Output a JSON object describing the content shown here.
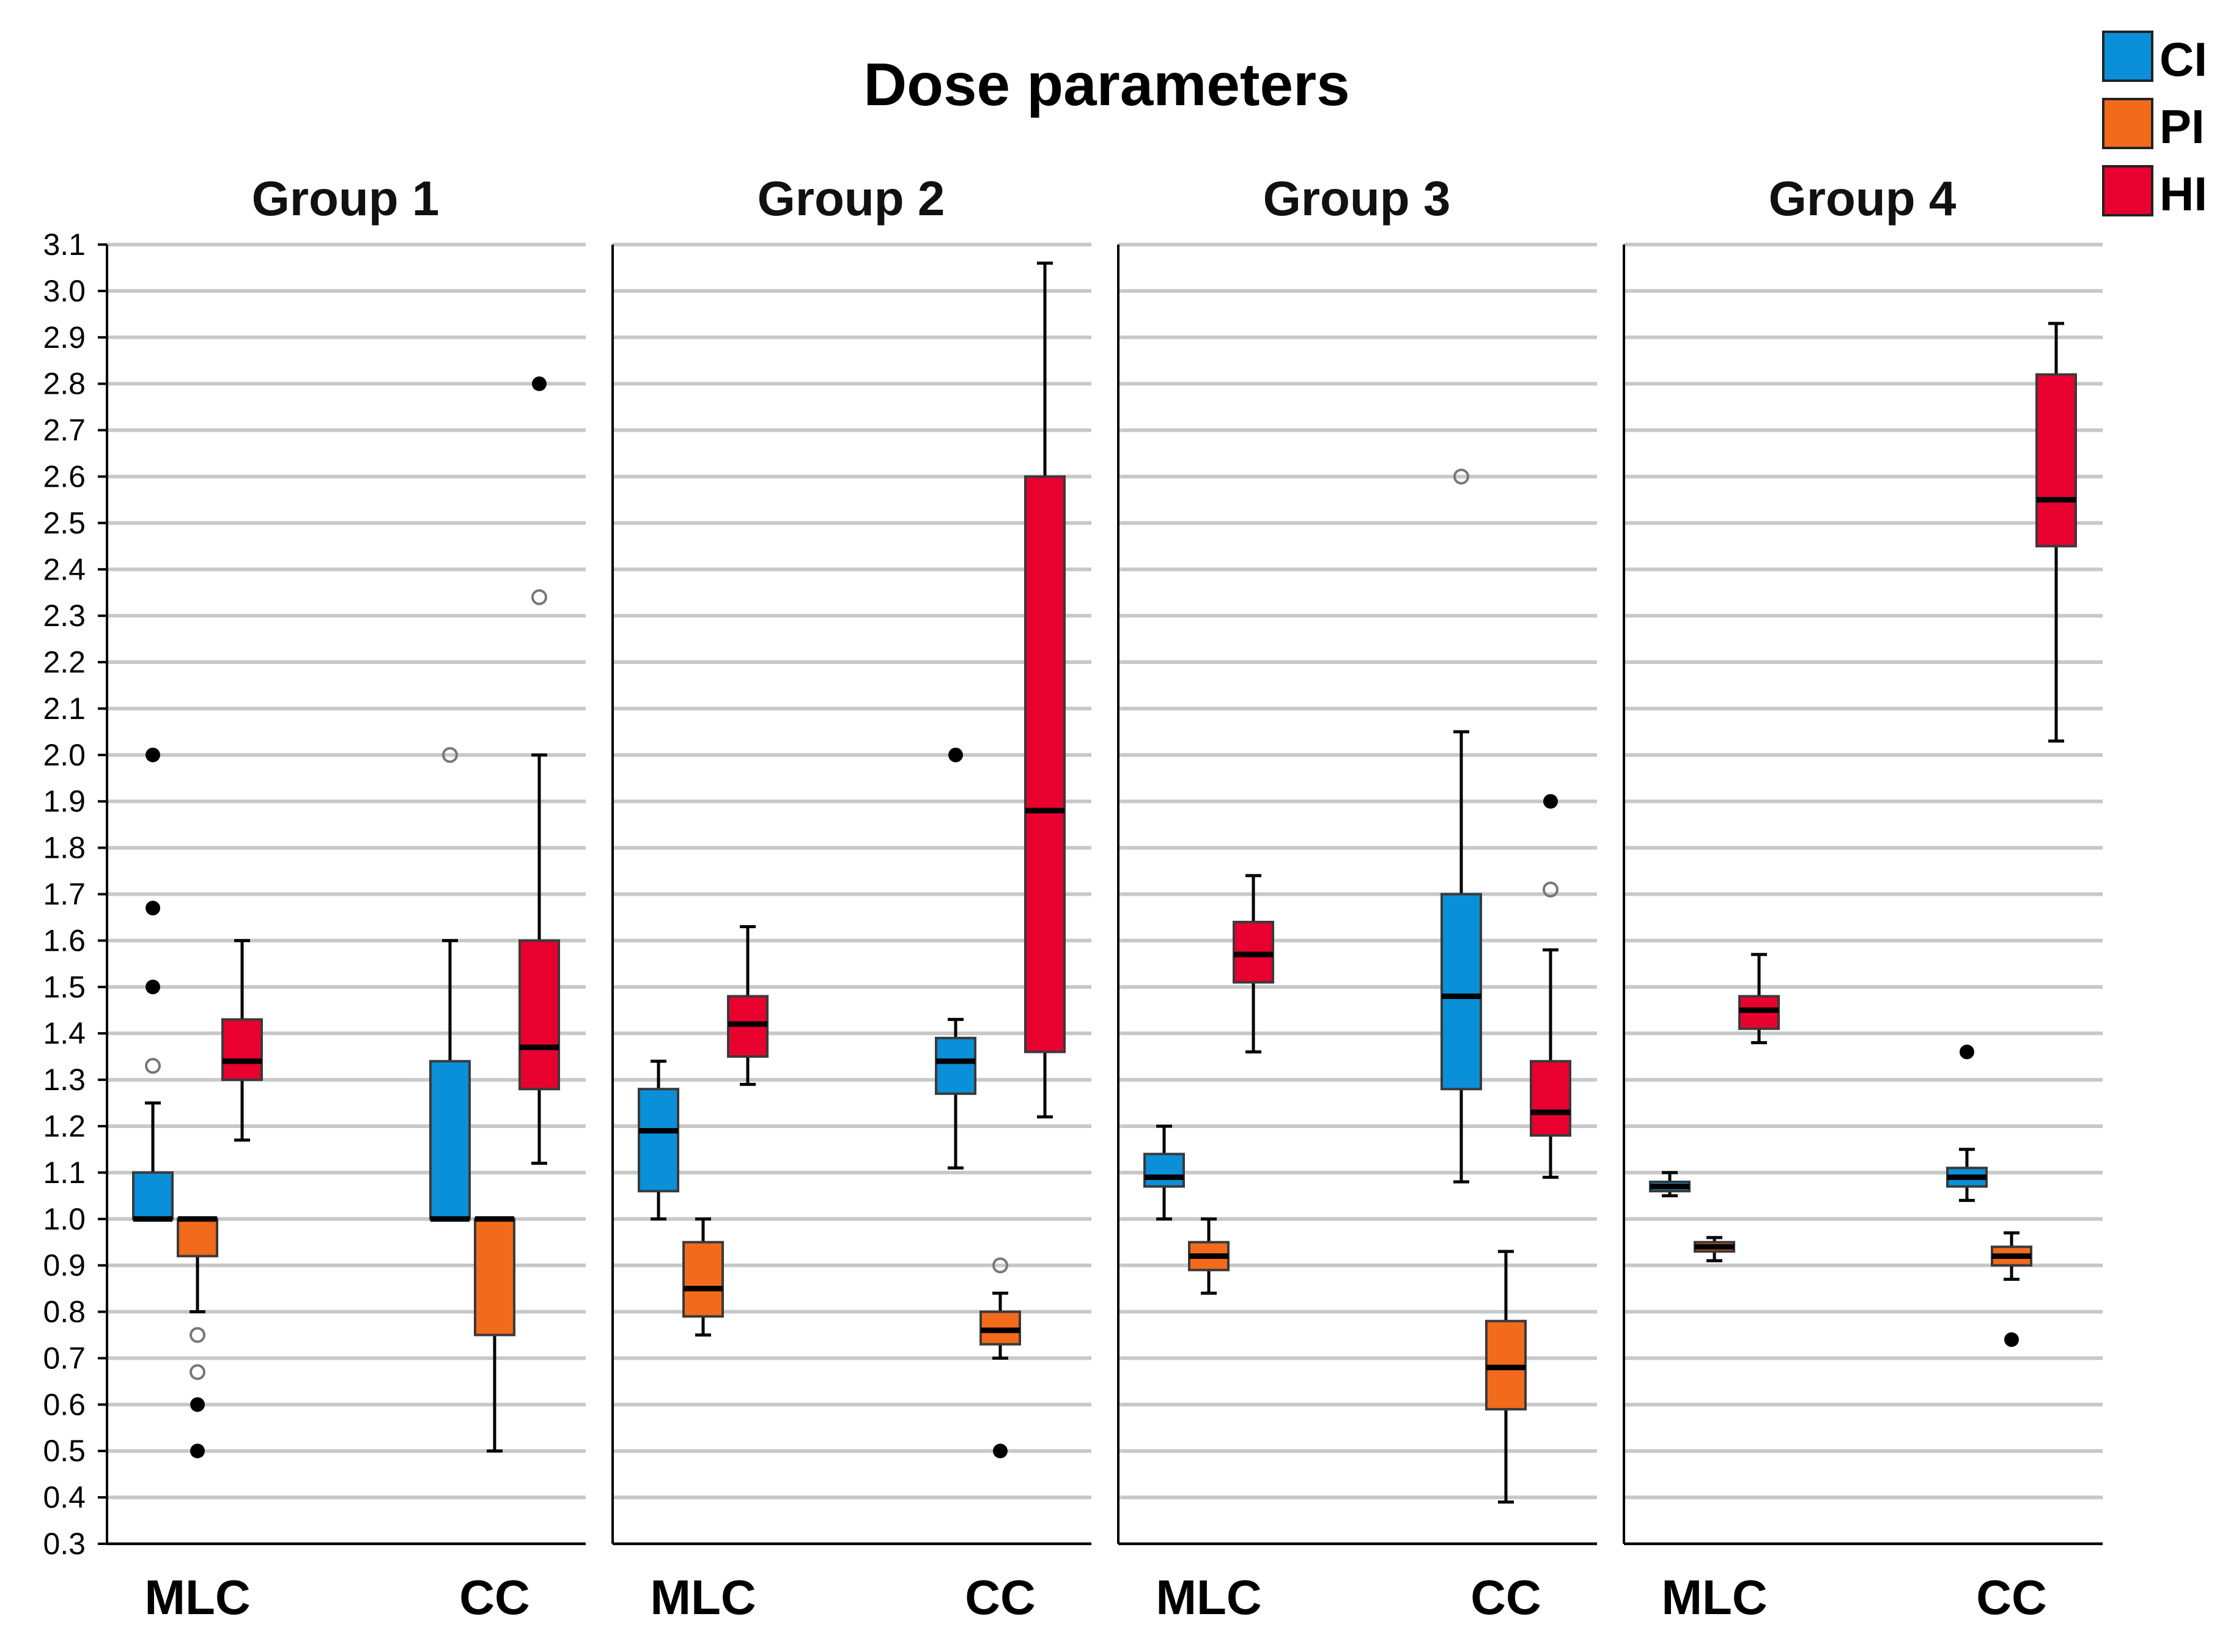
{
  "chart_data": {
    "type": "boxplot",
    "title": "Dose parameters",
    "xlabel": "",
    "ylabel": "",
    "ylim": [
      0.3,
      3.1
    ],
    "yticks": [
      "0.3",
      "0.4",
      "0.5",
      "0.6",
      "0.7",
      "0.8",
      "0.9",
      "1.0",
      "1.1",
      "1.2",
      "1.3",
      "1.4",
      "1.5",
      "1.6",
      "1.7",
      "1.8",
      "1.9",
      "2.0",
      "2.1",
      "2.2",
      "2.3",
      "2.4",
      "2.5",
      "2.6",
      "2.7",
      "2.8",
      "2.9",
      "3.0",
      "3.1"
    ],
    "grid": true,
    "legend_position": "top-right",
    "categories": [
      "MLC",
      "CC"
    ],
    "series": [
      {
        "name": "CI",
        "color": "#0a8fd9"
      },
      {
        "name": "PI",
        "color": "#f26a1b"
      },
      {
        "name": "HI",
        "color": "#e8002f"
      }
    ],
    "panels": [
      {
        "title": "Group 1",
        "boxes": [
          {
            "category": "MLC",
            "series": "CI",
            "min": 1.0,
            "q1": 1.0,
            "median": 1.0,
            "q3": 1.1,
            "max": 1.25,
            "outliers": [
              1.33
            ],
            "extremes": [
              1.5,
              1.67,
              2.0
            ]
          },
          {
            "category": "MLC",
            "series": "PI",
            "min": 0.8,
            "q1": 0.92,
            "median": 1.0,
            "q3": 1.0,
            "max": 1.0,
            "outliers": [
              0.75,
              0.67
            ],
            "extremes": [
              0.6,
              0.5
            ]
          },
          {
            "category": "MLC",
            "series": "HI",
            "min": 1.17,
            "q1": 1.3,
            "median": 1.34,
            "q3": 1.43,
            "max": 1.6,
            "outliers": [],
            "extremes": []
          },
          {
            "category": "CC",
            "series": "CI",
            "min": 1.0,
            "q1": 1.0,
            "median": 1.0,
            "q3": 1.34,
            "max": 1.6,
            "outliers": [
              2.0
            ],
            "extremes": []
          },
          {
            "category": "CC",
            "series": "PI",
            "min": 0.5,
            "q1": 0.75,
            "median": 1.0,
            "q3": 1.0,
            "max": 1.0,
            "outliers": [],
            "extremes": []
          },
          {
            "category": "CC",
            "series": "HI",
            "min": 1.12,
            "q1": 1.28,
            "median": 1.37,
            "q3": 1.6,
            "max": 2.0,
            "outliers": [
              2.34
            ],
            "extremes": [
              2.8
            ]
          }
        ]
      },
      {
        "title": "Group 2",
        "boxes": [
          {
            "category": "MLC",
            "series": "CI",
            "min": 1.0,
            "q1": 1.06,
            "median": 1.19,
            "q3": 1.28,
            "max": 1.34,
            "outliers": [],
            "extremes": []
          },
          {
            "category": "MLC",
            "series": "PI",
            "min": 0.75,
            "q1": 0.79,
            "median": 0.85,
            "q3": 0.95,
            "max": 1.0,
            "outliers": [],
            "extremes": []
          },
          {
            "category": "MLC",
            "series": "HI",
            "min": 1.29,
            "q1": 1.35,
            "median": 1.42,
            "q3": 1.48,
            "max": 1.63,
            "outliers": [],
            "extremes": []
          },
          {
            "category": "CC",
            "series": "CI",
            "min": 1.11,
            "q1": 1.27,
            "median": 1.34,
            "q3": 1.39,
            "max": 1.43,
            "outliers": [],
            "extremes": [
              2.0
            ]
          },
          {
            "category": "CC",
            "series": "PI",
            "min": 0.7,
            "q1": 0.73,
            "median": 0.76,
            "q3": 0.8,
            "max": 0.84,
            "outliers": [
              0.9
            ],
            "extremes": [
              0.5
            ]
          },
          {
            "category": "CC",
            "series": "HI",
            "min": 1.22,
            "q1": 1.36,
            "median": 1.88,
            "q3": 2.6,
            "max": 3.06,
            "outliers": [],
            "extremes": []
          }
        ]
      },
      {
        "title": "Group 3",
        "boxes": [
          {
            "category": "MLC",
            "series": "CI",
            "min": 1.0,
            "q1": 1.07,
            "median": 1.09,
            "q3": 1.14,
            "max": 1.2,
            "outliers": [],
            "extremes": []
          },
          {
            "category": "MLC",
            "series": "PI",
            "min": 0.84,
            "q1": 0.89,
            "median": 0.92,
            "q3": 0.95,
            "max": 1.0,
            "outliers": [],
            "extremes": []
          },
          {
            "category": "MLC",
            "series": "HI",
            "min": 1.36,
            "q1": 1.51,
            "median": 1.57,
            "q3": 1.64,
            "max": 1.74,
            "outliers": [],
            "extremes": []
          },
          {
            "category": "CC",
            "series": "CI",
            "min": 1.08,
            "q1": 1.28,
            "median": 1.48,
            "q3": 1.7,
            "max": 2.05,
            "outliers": [
              2.6
            ],
            "extremes": []
          },
          {
            "category": "CC",
            "series": "PI",
            "min": 0.39,
            "q1": 0.59,
            "median": 0.68,
            "q3": 0.78,
            "max": 0.93,
            "outliers": [],
            "extremes": []
          },
          {
            "category": "CC",
            "series": "HI",
            "min": 1.09,
            "q1": 1.18,
            "median": 1.23,
            "q3": 1.34,
            "max": 1.58,
            "outliers": [
              1.71
            ],
            "extremes": [
              1.9
            ]
          }
        ]
      },
      {
        "title": "Group 4",
        "boxes": [
          {
            "category": "MLC",
            "series": "CI",
            "min": 1.05,
            "q1": 1.06,
            "median": 1.07,
            "q3": 1.08,
            "max": 1.1,
            "outliers": [],
            "extremes": []
          },
          {
            "category": "MLC",
            "series": "PI",
            "min": 0.91,
            "q1": 0.93,
            "median": 0.94,
            "q3": 0.95,
            "max": 0.96,
            "outliers": [],
            "extremes": []
          },
          {
            "category": "MLC",
            "series": "HI",
            "min": 1.38,
            "q1": 1.41,
            "median": 1.45,
            "q3": 1.48,
            "max": 1.57,
            "outliers": [],
            "extremes": []
          },
          {
            "category": "CC",
            "series": "CI",
            "min": 1.04,
            "q1": 1.07,
            "median": 1.09,
            "q3": 1.11,
            "max": 1.15,
            "outliers": [],
            "extremes": [
              1.36
            ]
          },
          {
            "category": "CC",
            "series": "PI",
            "min": 0.87,
            "q1": 0.9,
            "median": 0.92,
            "q3": 0.94,
            "max": 0.97,
            "outliers": [],
            "extremes": [
              0.74
            ]
          },
          {
            "category": "CC",
            "series": "HI",
            "min": 2.03,
            "q1": 2.45,
            "median": 2.55,
            "q3": 2.82,
            "max": 2.93,
            "outliers": [],
            "extremes": []
          }
        ]
      }
    ]
  }
}
